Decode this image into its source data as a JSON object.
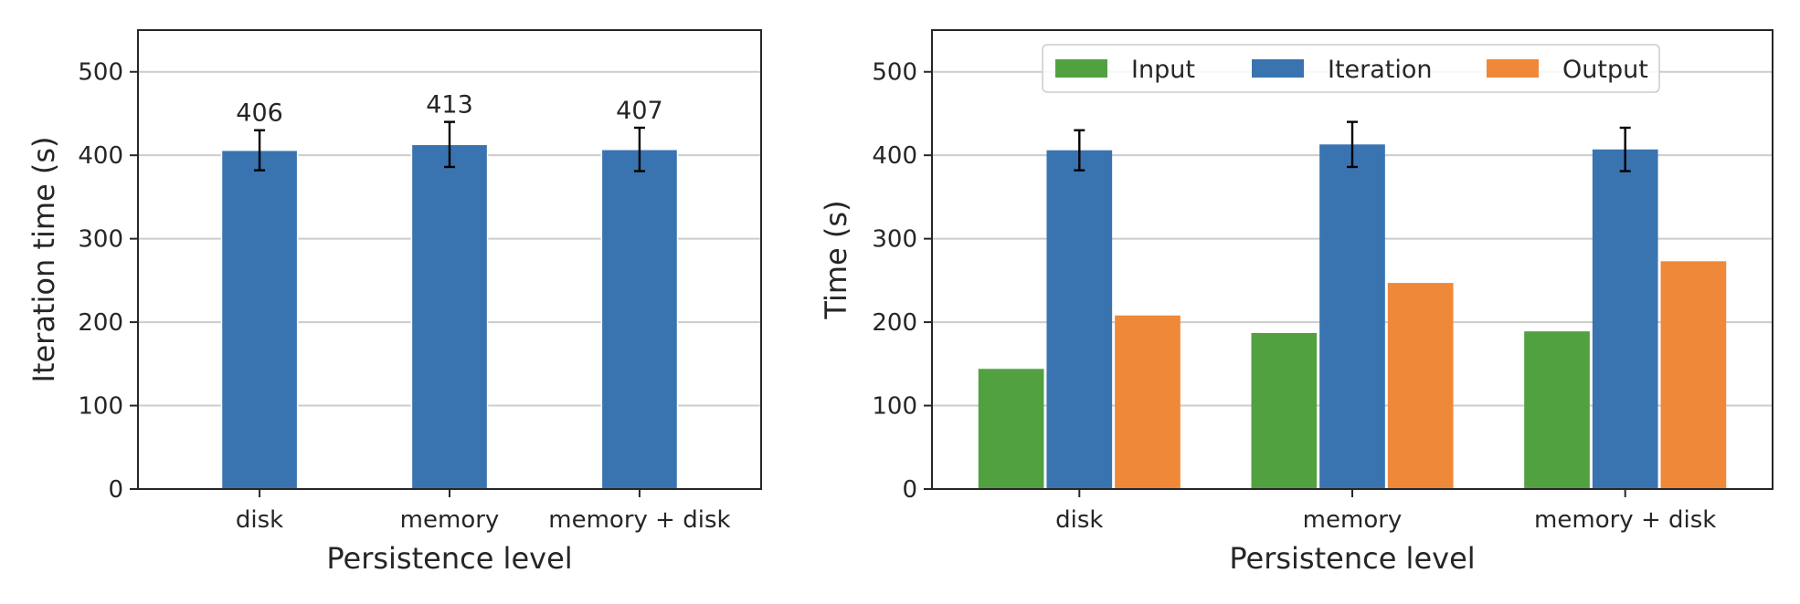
{
  "chart_data": [
    {
      "type": "bar",
      "categories": [
        "disk",
        "memory",
        "memory + disk"
      ],
      "values": [
        406,
        413,
        407
      ],
      "errors": [
        24,
        27,
        26
      ],
      "data_labels": [
        "406",
        "413",
        "407"
      ],
      "xlabel": "Persistence level",
      "ylabel": "Iteration time (s)",
      "ylim": [
        0,
        550
      ],
      "yticks": [
        0,
        100,
        200,
        300,
        400,
        500
      ],
      "grid": "y",
      "color": "#3a74b0"
    },
    {
      "type": "bar",
      "categories": [
        "disk",
        "memory",
        "memory + disk"
      ],
      "series": [
        {
          "name": "Input",
          "values": [
            144,
            187,
            189
          ],
          "color": "#52a141"
        },
        {
          "name": "Iteration",
          "values": [
            406,
            413,
            407
          ],
          "errors": [
            24,
            27,
            26
          ],
          "color": "#3a74b0"
        },
        {
          "name": "Output",
          "values": [
            208,
            247,
            273
          ],
          "color": "#ef8839"
        }
      ],
      "xlabel": "Persistence level",
      "ylabel": "Time (s)",
      "ylim": [
        0,
        550
      ],
      "yticks": [
        0,
        100,
        200,
        300,
        400,
        500
      ],
      "grid": "y",
      "legend": "top-center"
    }
  ]
}
